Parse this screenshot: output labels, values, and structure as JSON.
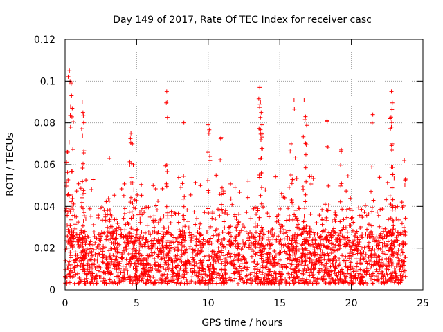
{
  "chart_data": {
    "type": "scatter",
    "title": "Day 149 of 2017, Rate Of TEC Index for receiver casc",
    "xlabel": "GPS time / hours",
    "ylabel": "ROTI / TECUs",
    "xlim": [
      0,
      25
    ],
    "ylim": [
      0,
      0.12
    ],
    "grid": true,
    "x_ticks": [
      0,
      5,
      10,
      15,
      20,
      25
    ],
    "x_tick_labels": [
      "0",
      "5",
      "10",
      "15",
      "20",
      "25"
    ],
    "y_ticks": [
      0,
      0.02,
      0.04,
      0.06,
      0.08,
      0.1,
      0.12
    ],
    "y_tick_labels": [
      "0",
      "0.02",
      "0.04",
      "0.06",
      "0.08",
      "0.1",
      "0.12"
    ],
    "series": [
      {
        "name": "ROTI",
        "color": "#ff0000",
        "marker": "plus",
        "x_range": [
          0,
          23.8
        ],
        "typical_range": [
          0.003,
          0.04
        ],
        "peaks": [
          {
            "x": 0.15,
            "y": 0.066
          },
          {
            "x": 0.3,
            "y": 0.105
          },
          {
            "x": 0.35,
            "y": 0.1
          },
          {
            "x": 0.45,
            "y": 0.093
          },
          {
            "x": 0.5,
            "y": 0.087
          },
          {
            "x": 1.2,
            "y": 0.09
          },
          {
            "x": 1.25,
            "y": 0.085
          },
          {
            "x": 1.3,
            "y": 0.08
          },
          {
            "x": 3.1,
            "y": 0.063
          },
          {
            "x": 4.6,
            "y": 0.075
          },
          {
            "x": 4.7,
            "y": 0.07
          },
          {
            "x": 7.1,
            "y": 0.095
          },
          {
            "x": 7.15,
            "y": 0.09
          },
          {
            "x": 8.3,
            "y": 0.08
          },
          {
            "x": 10.0,
            "y": 0.079
          },
          {
            "x": 10.05,
            "y": 0.075
          },
          {
            "x": 10.9,
            "y": 0.073
          },
          {
            "x": 13.6,
            "y": 0.097
          },
          {
            "x": 13.65,
            "y": 0.09
          },
          {
            "x": 13.7,
            "y": 0.085
          },
          {
            "x": 13.75,
            "y": 0.079
          },
          {
            "x": 15.8,
            "y": 0.07
          },
          {
            "x": 16.0,
            "y": 0.091
          },
          {
            "x": 16.7,
            "y": 0.091
          },
          {
            "x": 16.8,
            "y": 0.083
          },
          {
            "x": 18.3,
            "y": 0.081
          },
          {
            "x": 19.3,
            "y": 0.067
          },
          {
            "x": 21.5,
            "y": 0.084
          },
          {
            "x": 22.8,
            "y": 0.095
          },
          {
            "x": 22.85,
            "y": 0.09
          },
          {
            "x": 22.8,
            "y": 0.078
          },
          {
            "x": 23.7,
            "y": 0.062
          }
        ]
      }
    ]
  }
}
